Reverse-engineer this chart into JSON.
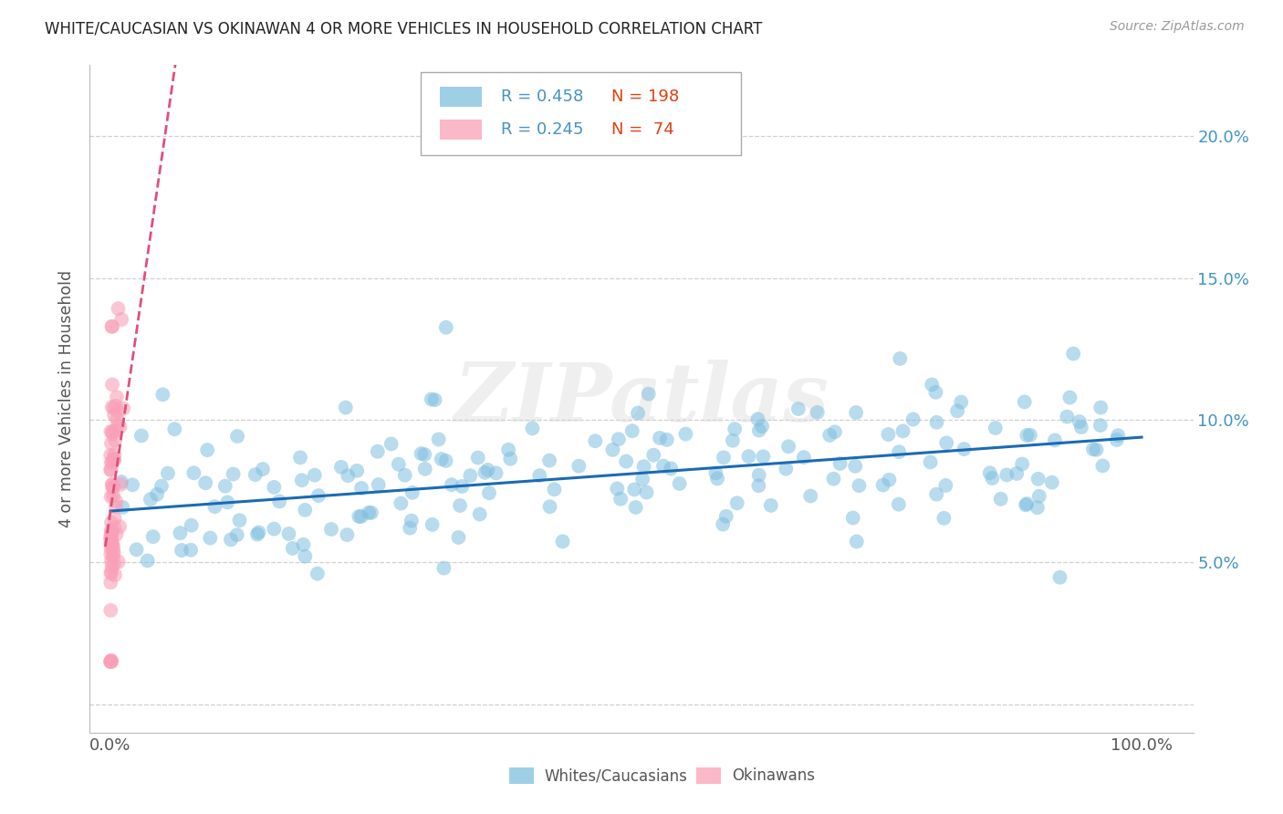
{
  "title": "WHITE/CAUCASIAN VS OKINAWAN 4 OR MORE VEHICLES IN HOUSEHOLD CORRELATION CHART",
  "source": "Source: ZipAtlas.com",
  "ylabel": "4 or more Vehicles in Household",
  "watermark": "ZIPatlas",
  "blue_R": 0.458,
  "blue_N": 198,
  "pink_R": 0.245,
  "pink_N": 74,
  "xlim": [
    -0.02,
    1.05
  ],
  "ylim": [
    -0.01,
    0.225
  ],
  "yticks": [
    0.0,
    0.05,
    0.1,
    0.15,
    0.2
  ],
  "yticklabels_right": [
    "",
    "5.0%",
    "10.0%",
    "15.0%",
    "20.0%"
  ],
  "xtick_left_label": "0.0%",
  "xtick_right_label": "100.0%",
  "blue_color": "#7fbfdf",
  "blue_line_color": "#1a6bb5",
  "pink_color": "#f9a0b8",
  "pink_line_color": "#e0507a",
  "background_color": "#ffffff",
  "grid_color": "#d0d0d0",
  "title_color": "#222222",
  "axis_label_color": "#555555",
  "tick_color_right": "#4393c3",
  "legend_blue_label": "Whites/Caucasians",
  "legend_pink_label": "Okinawans",
  "blue_slope": 0.026,
  "blue_intercept": 0.068,
  "pink_slope": 2.5,
  "pink_intercept": 0.068
}
